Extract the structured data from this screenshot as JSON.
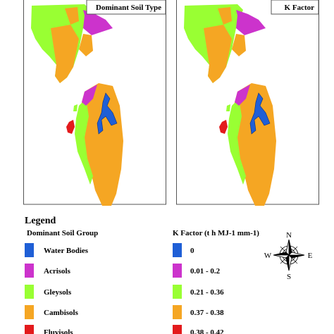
{
  "panels": [
    {
      "title": "Dominant Soil Type"
    },
    {
      "title": "K Factor"
    }
  ],
  "legend": {
    "title": "Legend",
    "groups": [
      {
        "title": "Dominant Soil Group",
        "items": [
          "Water Bodies",
          "Acrisols",
          "Gleysols",
          "Cambisols",
          "Fluvisols"
        ]
      },
      {
        "title": "K Factor (t h MJ-1 mm-1)",
        "items": [
          "0",
          "0.01 - 0.2",
          "0.21 - 0.36",
          "0.37 - 0.38",
          "0.38 - 0.42"
        ]
      }
    ]
  },
  "compass": {
    "n": "N",
    "s": "S",
    "e": "E",
    "w": "W"
  }
}
